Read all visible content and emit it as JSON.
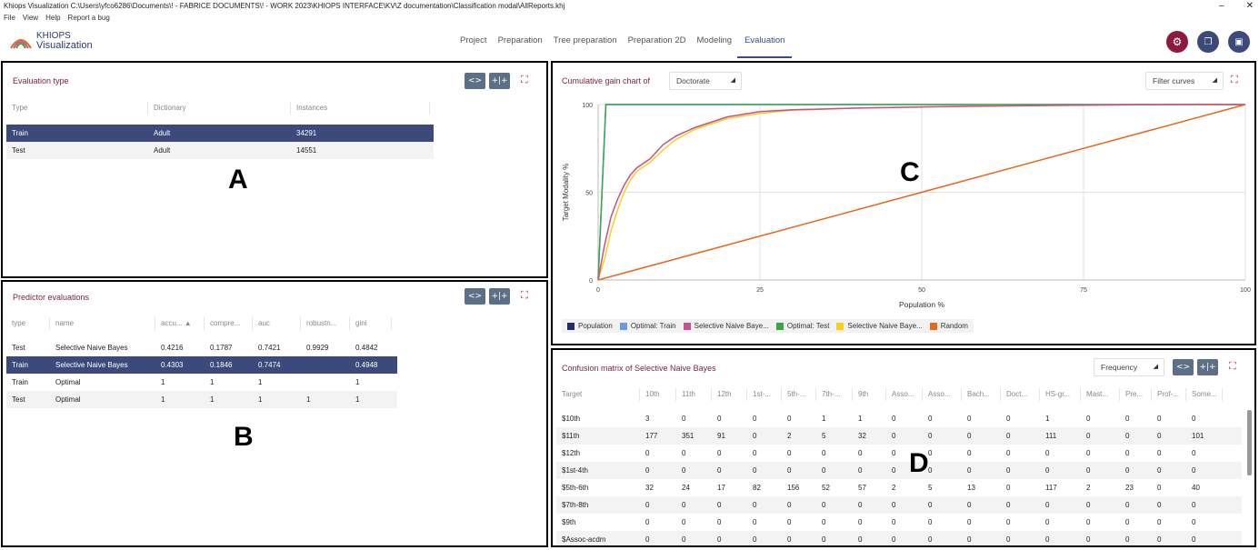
{
  "window": {
    "title": "Khiops Visualization C:\\Users\\yfco6286\\Documents\\! - FABRICE DOCUMENTS\\! - WORK 2023\\KHIOPS INTERFACE\\KV\\Z documentation\\Classification modal\\AllReports.khj",
    "minimize": "–",
    "close": "✕"
  },
  "menu": [
    "File",
    "View",
    "Help",
    "Report a bug"
  ],
  "logo": {
    "line1": "KHIOPS",
    "line2": "Visualization"
  },
  "nav": [
    "Project",
    "Preparation",
    "Tree preparation",
    "Preparation 2D",
    "Modeling",
    "Evaluation"
  ],
  "nav_active": "Evaluation",
  "header_icons": [
    "gear-icon",
    "copy-icon",
    "gallery-icon"
  ],
  "colors": {
    "accent": "#8b1a3d",
    "selected_row": "#3b4a7a",
    "button": "#5c6f87"
  },
  "panel_a": {
    "title": "Evaluation type",
    "columns": [
      "Type",
      "Dictionary",
      "Instances"
    ],
    "rows": [
      [
        "Train",
        "Adult",
        "34291"
      ],
      [
        "Test",
        "Adult",
        "14551"
      ]
    ],
    "selected_row": 0,
    "label": "A"
  },
  "panel_b": {
    "title": "Predictor evaluations",
    "columns": [
      "type",
      "name",
      "accu... ▲",
      "compre...",
      "auc",
      "robustn...",
      "gini"
    ],
    "rows": [
      [
        "Test",
        "Selective Naive Bayes",
        "0.4216",
        "0.1787",
        "0.7421",
        "0.9929",
        "0.4842"
      ],
      [
        "Train",
        "Selective Naive Bayes",
        "0.4303",
        "0.1846",
        "0.7474",
        "",
        "0.4948"
      ],
      [
        "Train",
        "Optimal",
        "1",
        "1",
        "1",
        "",
        "1"
      ],
      [
        "Test",
        "Optimal",
        "1",
        "1",
        "1",
        "1",
        "1"
      ]
    ],
    "selected_row": 1,
    "label": "B"
  },
  "panel_c": {
    "title": "Cumulative gain chart of",
    "target_value": "Doctorate",
    "filter_label": "Filter curves",
    "label": "C"
  },
  "chart_data": {
    "type": "line",
    "xlabel": "Population %",
    "ylabel": "Target Modality %",
    "xlim": [
      0,
      100
    ],
    "ylim": [
      0,
      100
    ],
    "xticks": [
      "0",
      "25",
      "50",
      "75",
      "100"
    ],
    "yticks": [
      "0",
      "50",
      "100"
    ],
    "grid": true,
    "legend_position": "bottom-left",
    "series": [
      {
        "name": "Population",
        "color": "#1f2d6b",
        "x": [],
        "y": []
      },
      {
        "name": "Optimal: Train",
        "color": "#6a9be0",
        "x": [
          0,
          1.2,
          100
        ],
        "y": [
          0,
          100,
          100
        ]
      },
      {
        "name": "Selective Naive Baye...",
        "color": "#c94f8f",
        "x": [
          0,
          1,
          2,
          3,
          4,
          5,
          6,
          8,
          10,
          12,
          15,
          20,
          25,
          30,
          40,
          50,
          60,
          70,
          80,
          90,
          100
        ],
        "y": [
          0,
          20,
          36,
          46,
          54,
          60,
          64,
          69,
          77,
          82,
          87,
          93,
          96,
          97,
          98,
          98.6,
          99.1,
          99.5,
          99.8,
          100,
          100
        ]
      },
      {
        "name": "Optimal: Test",
        "color": "#3aa64a",
        "x": [
          0,
          1.2,
          100
        ],
        "y": [
          0,
          100,
          100
        ]
      },
      {
        "name": "Selective Naive Baye...",
        "color": "#f5d11c",
        "x": [
          0,
          1,
          2,
          3,
          4,
          5,
          6,
          8,
          10,
          12,
          15,
          20,
          25,
          30,
          40,
          50,
          60,
          70,
          80,
          90,
          100
        ],
        "y": [
          0,
          12,
          28,
          40,
          50,
          57,
          62,
          67,
          74,
          80,
          86,
          92,
          95,
          96.8,
          98,
          98.7,
          99.2,
          99.5,
          99.8,
          100,
          100
        ]
      },
      {
        "name": "Random",
        "color": "#e8671b",
        "x": [
          0,
          100
        ],
        "y": [
          0,
          100
        ]
      }
    ]
  },
  "panel_d": {
    "title": "Confusion matrix of Selective Naive Bayes",
    "mode": "Frequency",
    "label": "D",
    "columns": [
      "Target",
      "10th",
      "11th",
      "12th",
      "1st-...",
      "5th-...",
      "7th-...",
      "9th",
      "Asso...",
      "Asso...",
      "Bach...",
      "Doct...",
      "HS-gr...",
      "Mast...",
      "Pre...",
      "Prof-...",
      "Some..."
    ],
    "rows": [
      [
        "$10th",
        "3",
        "0",
        "0",
        "0",
        "0",
        "1",
        "1",
        "0",
        "0",
        "0",
        "0",
        "1",
        "0",
        "0",
        "0",
        "0"
      ],
      [
        "$11th",
        "177",
        "351",
        "91",
        "0",
        "2",
        "5",
        "32",
        "0",
        "0",
        "0",
        "0",
        "111",
        "0",
        "0",
        "0",
        "101"
      ],
      [
        "$12th",
        "0",
        "0",
        "0",
        "0",
        "0",
        "0",
        "0",
        "0",
        "0",
        "0",
        "0",
        "0",
        "0",
        "0",
        "0",
        "0"
      ],
      [
        "$1st-4th",
        "0",
        "0",
        "0",
        "0",
        "0",
        "0",
        "0",
        "0",
        "0",
        "0",
        "0",
        "0",
        "0",
        "0",
        "0",
        "0"
      ],
      [
        "$5th-6th",
        "32",
        "24",
        "17",
        "82",
        "156",
        "52",
        "57",
        "2",
        "5",
        "13",
        "0",
        "117",
        "2",
        "23",
        "0",
        "40"
      ],
      [
        "$7th-8th",
        "0",
        "0",
        "0",
        "0",
        "0",
        "0",
        "0",
        "0",
        "0",
        "0",
        "0",
        "0",
        "0",
        "0",
        "0",
        "0"
      ],
      [
        "$9th",
        "0",
        "0",
        "0",
        "0",
        "0",
        "0",
        "0",
        "0",
        "0",
        "0",
        "0",
        "0",
        "0",
        "0",
        "0",
        "0"
      ],
      [
        "$Assoc-acdm",
        "0",
        "0",
        "0",
        "0",
        "0",
        "0",
        "0",
        "0",
        "0",
        "0",
        "0",
        "0",
        "0",
        "0",
        "0",
        "0"
      ]
    ]
  },
  "toolbar": {
    "collapse": "<>",
    "expand": "+|+",
    "fullscreen": "⛶"
  }
}
